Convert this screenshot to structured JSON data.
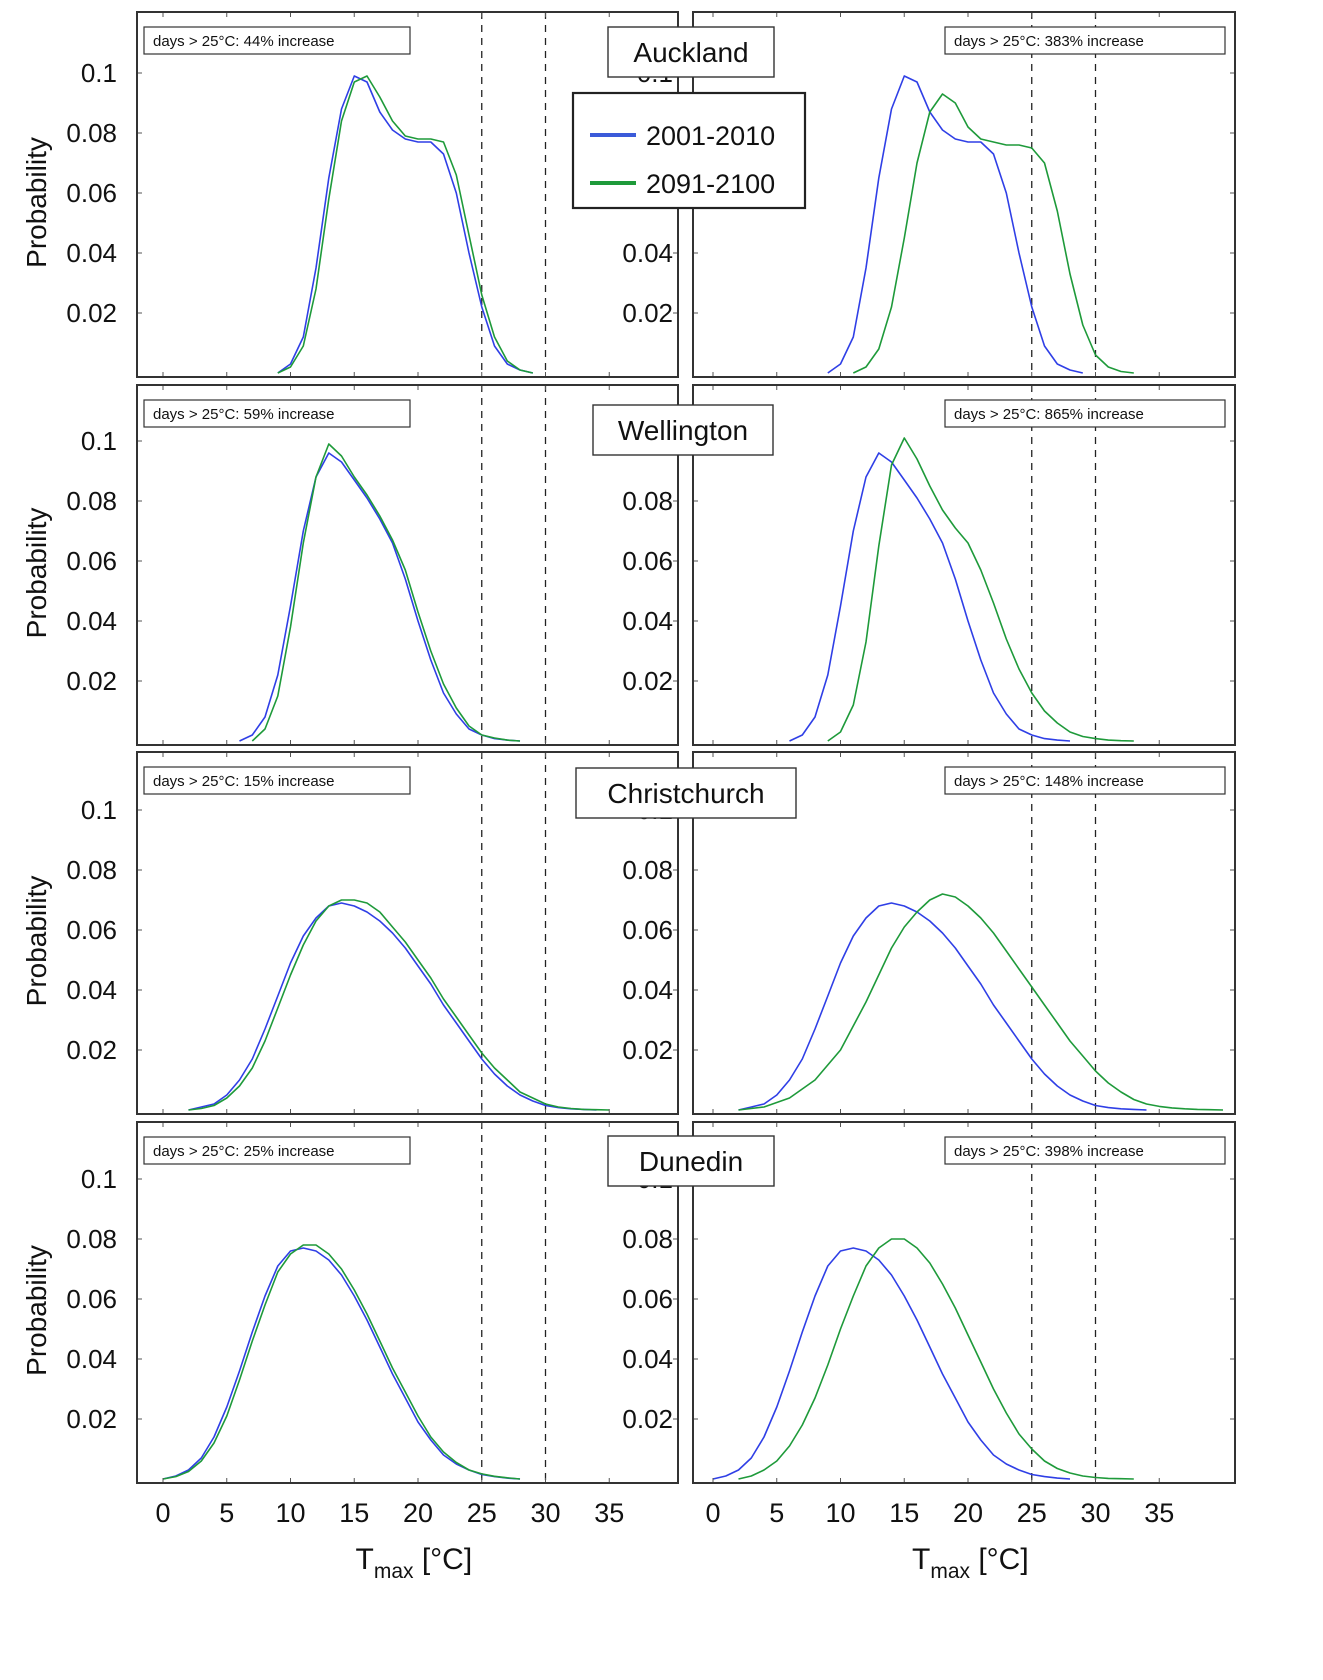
{
  "figure": {
    "x_ticks": [
      0,
      5,
      10,
      15,
      20,
      25,
      30,
      35
    ],
    "y_ticks": [
      "0.1",
      "0.08",
      "0.06",
      "0.04",
      "0.02"
    ],
    "y_label": "Probability",
    "x_label_main": "T",
    "x_label_sub": "max",
    "x_label_unit": " [°C]",
    "legend": [
      {
        "label": "2001-2010",
        "color": "#3b5bd9"
      },
      {
        "label": "2091-2100",
        "color": "#1e9a3a"
      }
    ],
    "colors": {
      "period_2001_2010": "#2f3fe6",
      "period_2091_2100": "#1e9a3a"
    }
  },
  "chart_data": [
    {
      "type": "line",
      "city": "Auckland",
      "panel": "left",
      "annotation": "days > 25°C: 44% increase",
      "xlim": [
        -2,
        40
      ],
      "ylim": [
        0,
        0.12
      ],
      "vlines": [
        25,
        30
      ],
      "series": [
        {
          "name": "2001-2010",
          "x": [
            9,
            10,
            11,
            12,
            13,
            14,
            15,
            16,
            17,
            18,
            19,
            20,
            21,
            22,
            23,
            24,
            25,
            26,
            27,
            28,
            29
          ],
          "y": [
            0,
            0.003,
            0.012,
            0.035,
            0.065,
            0.088,
            0.099,
            0.097,
            0.087,
            0.081,
            0.078,
            0.077,
            0.077,
            0.073,
            0.06,
            0.04,
            0.022,
            0.009,
            0.003,
            0.001,
            0
          ]
        },
        {
          "name": "2091-2100",
          "x": [
            9,
            10,
            11,
            12,
            13,
            14,
            15,
            16,
            17,
            18,
            19,
            20,
            21,
            22,
            23,
            24,
            25,
            26,
            27,
            28,
            29
          ],
          "y": [
            0,
            0.002,
            0.009,
            0.028,
            0.058,
            0.084,
            0.097,
            0.099,
            0.092,
            0.084,
            0.079,
            0.078,
            0.078,
            0.077,
            0.066,
            0.046,
            0.026,
            0.012,
            0.004,
            0.001,
            0
          ]
        }
      ]
    },
    {
      "type": "line",
      "city": "Auckland",
      "panel": "right",
      "annotation": "days > 25°C: 383% increase",
      "xlim": [
        -2,
        40
      ],
      "ylim": [
        0,
        0.12
      ],
      "vlines": [
        25,
        30
      ],
      "series": [
        {
          "name": "2001-2010",
          "x": [
            9,
            10,
            11,
            12,
            13,
            14,
            15,
            16,
            17,
            18,
            19,
            20,
            21,
            22,
            23,
            24,
            25,
            26,
            27,
            28,
            29
          ],
          "y": [
            0,
            0.003,
            0.012,
            0.035,
            0.065,
            0.088,
            0.099,
            0.097,
            0.087,
            0.081,
            0.078,
            0.077,
            0.077,
            0.073,
            0.06,
            0.04,
            0.022,
            0.009,
            0.003,
            0.001,
            0
          ]
        },
        {
          "name": "2091-2100",
          "x": [
            11,
            12,
            13,
            14,
            15,
            16,
            17,
            18,
            19,
            20,
            21,
            22,
            23,
            24,
            25,
            26,
            27,
            28,
            29,
            30,
            31,
            32,
            33
          ],
          "y": [
            0,
            0.002,
            0.008,
            0.022,
            0.045,
            0.07,
            0.087,
            0.093,
            0.09,
            0.082,
            0.078,
            0.077,
            0.076,
            0.076,
            0.075,
            0.07,
            0.054,
            0.033,
            0.016,
            0.006,
            0.002,
            0.0005,
            0
          ]
        }
      ]
    },
    {
      "type": "line",
      "city": "Wellington",
      "panel": "left",
      "annotation": "days > 25°C: 59% increase",
      "xlim": [
        -2,
        40
      ],
      "ylim": [
        0,
        0.12
      ],
      "vlines": [
        25,
        30
      ],
      "series": [
        {
          "name": "2001-2010",
          "x": [
            6,
            7,
            8,
            9,
            10,
            11,
            12,
            13,
            14,
            15,
            16,
            17,
            18,
            19,
            20,
            21,
            22,
            23,
            24,
            25,
            26,
            27,
            28
          ],
          "y": [
            0,
            0.002,
            0.008,
            0.022,
            0.045,
            0.07,
            0.088,
            0.096,
            0.093,
            0.087,
            0.081,
            0.074,
            0.066,
            0.054,
            0.04,
            0.027,
            0.016,
            0.009,
            0.004,
            0.002,
            0.0008,
            0.0003,
            0
          ]
        },
        {
          "name": "2091-2100",
          "x": [
            7,
            8,
            9,
            10,
            11,
            12,
            13,
            14,
            15,
            16,
            17,
            18,
            19,
            20,
            21,
            22,
            23,
            24,
            25,
            26,
            27,
            28
          ],
          "y": [
            0,
            0.004,
            0.015,
            0.038,
            0.066,
            0.088,
            0.099,
            0.095,
            0.088,
            0.082,
            0.075,
            0.067,
            0.057,
            0.043,
            0.03,
            0.019,
            0.011,
            0.005,
            0.002,
            0.001,
            0.0003,
            0
          ]
        }
      ]
    },
    {
      "type": "line",
      "city": "Wellington",
      "panel": "right",
      "annotation": "days > 25°C: 865% increase",
      "xlim": [
        -2,
        40
      ],
      "ylim": [
        0,
        0.12
      ],
      "vlines": [
        25,
        30
      ],
      "series": [
        {
          "name": "2001-2010",
          "x": [
            6,
            7,
            8,
            9,
            10,
            11,
            12,
            13,
            14,
            15,
            16,
            17,
            18,
            19,
            20,
            21,
            22,
            23,
            24,
            25,
            26,
            27,
            28
          ],
          "y": [
            0,
            0.002,
            0.008,
            0.022,
            0.045,
            0.07,
            0.088,
            0.096,
            0.093,
            0.087,
            0.081,
            0.074,
            0.066,
            0.054,
            0.04,
            0.027,
            0.016,
            0.009,
            0.004,
            0.002,
            0.0008,
            0.0003,
            0
          ]
        },
        {
          "name": "2091-2100",
          "x": [
            9,
            10,
            11,
            12,
            13,
            14,
            15,
            16,
            17,
            18,
            19,
            20,
            21,
            22,
            23,
            24,
            25,
            26,
            27,
            28,
            29,
            30,
            31,
            32,
            33
          ],
          "y": [
            0,
            0.003,
            0.012,
            0.033,
            0.065,
            0.092,
            0.101,
            0.094,
            0.085,
            0.077,
            0.071,
            0.066,
            0.057,
            0.046,
            0.034,
            0.024,
            0.016,
            0.01,
            0.006,
            0.003,
            0.0015,
            0.0008,
            0.0003,
            0.0001,
            0
          ]
        }
      ]
    },
    {
      "type": "line",
      "city": "Christchurch",
      "panel": "left",
      "annotation": "days > 25°C: 15% increase",
      "xlim": [
        -2,
        40
      ],
      "ylim": [
        0,
        0.12
      ],
      "vlines": [
        25,
        30
      ],
      "series": [
        {
          "name": "2001-2010",
          "x": [
            2,
            3,
            4,
            5,
            6,
            7,
            8,
            9,
            10,
            11,
            12,
            13,
            14,
            15,
            16,
            17,
            18,
            19,
            20,
            21,
            22,
            23,
            24,
            25,
            26,
            27,
            28,
            29,
            30,
            31,
            32,
            33,
            34
          ],
          "y": [
            0,
            0.001,
            0.002,
            0.005,
            0.01,
            0.017,
            0.027,
            0.038,
            0.049,
            0.058,
            0.064,
            0.068,
            0.069,
            0.068,
            0.066,
            0.063,
            0.059,
            0.054,
            0.048,
            0.042,
            0.035,
            0.029,
            0.023,
            0.017,
            0.012,
            0.008,
            0.005,
            0.003,
            0.0015,
            0.0008,
            0.0004,
            0.0002,
            0
          ]
        },
        {
          "name": "2091-2100",
          "x": [
            2,
            3,
            4,
            5,
            6,
            7,
            8,
            9,
            10,
            11,
            12,
            13,
            14,
            15,
            16,
            17,
            18,
            19,
            20,
            21,
            22,
            23,
            24,
            25,
            26,
            27,
            28,
            29,
            30,
            31,
            32,
            33,
            34,
            35
          ],
          "y": [
            0,
            0.0005,
            0.0015,
            0.004,
            0.008,
            0.014,
            0.023,
            0.034,
            0.045,
            0.055,
            0.063,
            0.068,
            0.07,
            0.07,
            0.069,
            0.066,
            0.061,
            0.056,
            0.05,
            0.044,
            0.037,
            0.031,
            0.025,
            0.019,
            0.014,
            0.01,
            0.006,
            0.004,
            0.002,
            0.001,
            0.0005,
            0.0002,
            0.0001,
            0
          ]
        }
      ]
    },
    {
      "type": "line",
      "city": "Christchurch",
      "panel": "right",
      "annotation": "days > 25°C: 148% increase",
      "xlim": [
        -2,
        40
      ],
      "ylim": [
        0,
        0.12
      ],
      "vlines": [
        25,
        30
      ],
      "series": [
        {
          "name": "2001-2010",
          "x": [
            2,
            3,
            4,
            5,
            6,
            7,
            8,
            9,
            10,
            11,
            12,
            13,
            14,
            15,
            16,
            17,
            18,
            19,
            20,
            21,
            22,
            23,
            24,
            25,
            26,
            27,
            28,
            29,
            30,
            31,
            32,
            33,
            34
          ],
          "y": [
            0,
            0.001,
            0.002,
            0.005,
            0.01,
            0.017,
            0.027,
            0.038,
            0.049,
            0.058,
            0.064,
            0.068,
            0.069,
            0.068,
            0.066,
            0.063,
            0.059,
            0.054,
            0.048,
            0.042,
            0.035,
            0.029,
            0.023,
            0.017,
            0.012,
            0.008,
            0.005,
            0.003,
            0.0015,
            0.0008,
            0.0004,
            0.0002,
            0
          ]
        },
        {
          "name": "2091-2100",
          "x": [
            2,
            4,
            6,
            8,
            10,
            12,
            14,
            15,
            16,
            17,
            18,
            19,
            20,
            21,
            22,
            23,
            24,
            25,
            26,
            27,
            28,
            29,
            30,
            31,
            32,
            33,
            34,
            35,
            36,
            37,
            38,
            39,
            40
          ],
          "y": [
            0,
            0.001,
            0.004,
            0.01,
            0.02,
            0.036,
            0.054,
            0.061,
            0.066,
            0.07,
            0.072,
            0.071,
            0.068,
            0.064,
            0.059,
            0.053,
            0.047,
            0.041,
            0.035,
            0.029,
            0.023,
            0.018,
            0.013,
            0.009,
            0.006,
            0.0035,
            0.002,
            0.0012,
            0.0007,
            0.0004,
            0.0002,
            0.0001,
            0
          ]
        }
      ]
    },
    {
      "type": "line",
      "city": "Dunedin",
      "panel": "left",
      "annotation": "days > 25°C: 25% increase",
      "xlim": [
        -2,
        40
      ],
      "ylim": [
        0,
        0.12
      ],
      "vlines": [
        25,
        30
      ],
      "series": [
        {
          "name": "2001-2010",
          "x": [
            0,
            1,
            2,
            3,
            4,
            5,
            6,
            7,
            8,
            9,
            10,
            11,
            12,
            13,
            14,
            15,
            16,
            17,
            18,
            19,
            20,
            21,
            22,
            23,
            24,
            25,
            26,
            27,
            28
          ],
          "y": [
            0,
            0.001,
            0.003,
            0.007,
            0.014,
            0.024,
            0.036,
            0.049,
            0.061,
            0.071,
            0.076,
            0.077,
            0.076,
            0.073,
            0.068,
            0.061,
            0.053,
            0.044,
            0.035,
            0.027,
            0.019,
            0.013,
            0.008,
            0.005,
            0.003,
            0.0015,
            0.0008,
            0.0003,
            0
          ]
        },
        {
          "name": "2091-2100",
          "x": [
            0,
            1,
            2,
            3,
            4,
            5,
            6,
            7,
            8,
            9,
            10,
            11,
            12,
            13,
            14,
            15,
            16,
            17,
            18,
            19,
            20,
            21,
            22,
            23,
            24,
            25,
            26,
            27,
            28
          ],
          "y": [
            0,
            0.0008,
            0.0025,
            0.006,
            0.012,
            0.021,
            0.033,
            0.046,
            0.058,
            0.069,
            0.075,
            0.078,
            0.078,
            0.075,
            0.07,
            0.063,
            0.055,
            0.046,
            0.037,
            0.029,
            0.021,
            0.014,
            0.009,
            0.0055,
            0.003,
            0.0017,
            0.0009,
            0.0004,
            0
          ]
        }
      ]
    },
    {
      "type": "line",
      "city": "Dunedin",
      "panel": "right",
      "annotation": "days > 25°C: 398% increase",
      "xlim": [
        -2,
        40
      ],
      "ylim": [
        0,
        0.12
      ],
      "vlines": [
        25,
        30
      ],
      "series": [
        {
          "name": "2001-2010",
          "x": [
            0,
            1,
            2,
            3,
            4,
            5,
            6,
            7,
            8,
            9,
            10,
            11,
            12,
            13,
            14,
            15,
            16,
            17,
            18,
            19,
            20,
            21,
            22,
            23,
            24,
            25,
            26,
            27,
            28
          ],
          "y": [
            0,
            0.001,
            0.003,
            0.007,
            0.014,
            0.024,
            0.036,
            0.049,
            0.061,
            0.071,
            0.076,
            0.077,
            0.076,
            0.073,
            0.068,
            0.061,
            0.053,
            0.044,
            0.035,
            0.027,
            0.019,
            0.013,
            0.008,
            0.005,
            0.003,
            0.0015,
            0.0008,
            0.0003,
            0
          ]
        },
        {
          "name": "2091-2100",
          "x": [
            2,
            3,
            4,
            5,
            6,
            7,
            8,
            9,
            10,
            11,
            12,
            13,
            14,
            15,
            16,
            17,
            18,
            19,
            20,
            21,
            22,
            23,
            24,
            25,
            26,
            27,
            28,
            29,
            30,
            31,
            32,
            33
          ],
          "y": [
            0,
            0.001,
            0.003,
            0.006,
            0.011,
            0.018,
            0.027,
            0.038,
            0.05,
            0.061,
            0.071,
            0.077,
            0.08,
            0.08,
            0.077,
            0.072,
            0.065,
            0.057,
            0.048,
            0.039,
            0.03,
            0.022,
            0.015,
            0.01,
            0.006,
            0.0035,
            0.002,
            0.001,
            0.0005,
            0.0002,
            0.0001,
            0
          ]
        }
      ]
    }
  ]
}
